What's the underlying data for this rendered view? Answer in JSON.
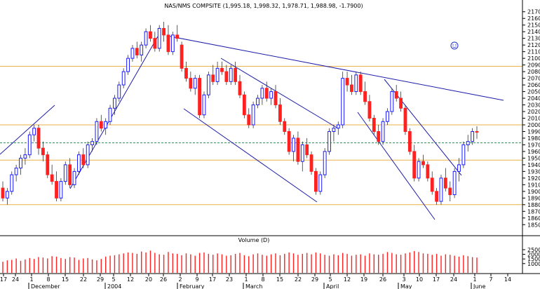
{
  "chart_data": [
    {
      "type": "candlestick",
      "title": "NAS/NMS COMPSITE (1,995.18, 1,998.32, 1,978.71, 1,988.98, -1.7900)",
      "ylim": [
        1845,
        2175
      ],
      "y_ticks": [
        1850,
        1860,
        1870,
        1880,
        1890,
        1900,
        1910,
        1920,
        1930,
        1940,
        1950,
        1960,
        1970,
        1980,
        1990,
        2000,
        2010,
        2020,
        2030,
        2040,
        2050,
        2060,
        2070,
        2080,
        2090,
        2100,
        2110,
        2120,
        2130,
        2140,
        2150,
        2160,
        2170
      ],
      "horizontal_levels": [
        {
          "value": 2088,
          "style": "solid",
          "color": "#e8b04a"
        },
        {
          "value": 2000,
          "style": "solid",
          "color": "#e8b04a"
        },
        {
          "value": 1973,
          "style": "dashed",
          "color": "#2e8b57"
        },
        {
          "value": 1947,
          "style": "solid",
          "color": "#e8b04a"
        },
        {
          "value": 1880,
          "style": "solid",
          "color": "#e8b04a"
        }
      ],
      "up_color": "#1a1aff",
      "down_color": "#ff2020",
      "trendline_color": "#1c1caa",
      "candles": [
        [
          1905,
          1915,
          1885,
          1890
        ],
        [
          1890,
          1905,
          1880,
          1900
        ],
        [
          1900,
          1930,
          1895,
          1925
        ],
        [
          1925,
          1940,
          1915,
          1935
        ],
        [
          1935,
          1955,
          1925,
          1950
        ],
        [
          1950,
          1965,
          1940,
          1955
        ],
        [
          1955,
          1990,
          1950,
          1985
        ],
        [
          1985,
          2000,
          1975,
          1995
        ],
        [
          1995,
          2000,
          1955,
          1965
        ],
        [
          1965,
          1975,
          1945,
          1955
        ],
        [
          1955,
          1960,
          1920,
          1925
        ],
        [
          1925,
          1940,
          1910,
          1915
        ],
        [
          1915,
          1930,
          1885,
          1890
        ],
        [
          1890,
          1920,
          1885,
          1915
        ],
        [
          1915,
          1945,
          1910,
          1940
        ],
        [
          1940,
          1950,
          1905,
          1910
        ],
        [
          1910,
          1935,
          1905,
          1930
        ],
        [
          1930,
          1960,
          1925,
          1955
        ],
        [
          1955,
          1965,
          1935,
          1940
        ],
        [
          1940,
          1975,
          1935,
          1970
        ],
        [
          1970,
          1980,
          1960,
          1975
        ],
        [
          1975,
          2010,
          1970,
          2005
        ],
        [
          2005,
          2015,
          1990,
          1995
        ],
        [
          1995,
          2010,
          1985,
          2005
        ],
        [
          2005,
          2030,
          2000,
          2025
        ],
        [
          2025,
          2045,
          2015,
          2040
        ],
        [
          2040,
          2065,
          2035,
          2060
        ],
        [
          2060,
          2085,
          2055,
          2080
        ],
        [
          2080,
          2105,
          2075,
          2100
        ],
        [
          2100,
          2120,
          2095,
          2115
        ],
        [
          2115,
          2125,
          2100,
          2105
        ],
        [
          2105,
          2125,
          2095,
          2120
        ],
        [
          2120,
          2145,
          2115,
          2140
        ],
        [
          2140,
          2150,
          2125,
          2130
        ],
        [
          2130,
          2140,
          2110,
          2115
        ],
        [
          2115,
          2150,
          2110,
          2145
        ],
        [
          2145,
          2155,
          2125,
          2135
        ],
        [
          2135,
          2150,
          2105,
          2110
        ],
        [
          2110,
          2140,
          2105,
          2135
        ],
        [
          2135,
          2150,
          2125,
          2130
        ],
        [
          2120,
          2125,
          2080,
          2085
        ],
        [
          2085,
          2095,
          2065,
          2070
        ],
        [
          2070,
          2080,
          2050,
          2055
        ],
        [
          2055,
          2075,
          2045,
          2070
        ],
        [
          2070,
          2075,
          2010,
          2015
        ],
        [
          2015,
          2050,
          2010,
          2045
        ],
        [
          2045,
          2080,
          2040,
          2075
        ],
        [
          2075,
          2090,
          2060,
          2065
        ],
        [
          2065,
          2095,
          2060,
          2085
        ],
        [
          2085,
          2095,
          2075,
          2080
        ],
        [
          2080,
          2090,
          2060,
          2065
        ],
        [
          2065,
          2090,
          2060,
          2085
        ],
        [
          2085,
          2095,
          2060,
          2065
        ],
        [
          2065,
          2075,
          2040,
          2045
        ],
        [
          2045,
          2050,
          2010,
          2015
        ],
        [
          2015,
          2025,
          1995,
          2000
        ],
        [
          2000,
          2035,
          1995,
          2030
        ],
        [
          2030,
          2045,
          2025,
          2040
        ],
        [
          2040,
          2060,
          2030,
          2055
        ],
        [
          2055,
          2065,
          2035,
          2040
        ],
        [
          2040,
          2055,
          2030,
          2050
        ],
        [
          2050,
          2060,
          2025,
          2030
        ],
        [
          2030,
          2040,
          2000,
          2005
        ],
        [
          2005,
          2010,
          1985,
          1990
        ],
        [
          1990,
          1995,
          1955,
          1960
        ],
        [
          1960,
          1985,
          1945,
          1980
        ],
        [
          1980,
          1990,
          1940,
          1945
        ],
        [
          1945,
          1975,
          1930,
          1970
        ],
        [
          1970,
          1980,
          1950,
          1955
        ],
        [
          1955,
          1960,
          1925,
          1930
        ],
        [
          1930,
          1935,
          1895,
          1900
        ],
        [
          1900,
          1930,
          1895,
          1925
        ],
        [
          1925,
          1965,
          1920,
          1960
        ],
        [
          1960,
          1995,
          1955,
          1990
        ],
        [
          1990,
          2000,
          1975,
          1995
        ],
        [
          1995,
          2005,
          1985,
          2000
        ],
        [
          2000,
          2080,
          1995,
          2070
        ],
        [
          2070,
          2080,
          2050,
          2060
        ],
        [
          2060,
          2075,
          2045,
          2050
        ],
        [
          2050,
          2080,
          2045,
          2075
        ],
        [
          2075,
          2080,
          2045,
          2050
        ],
        [
          2050,
          2065,
          2030,
          2035
        ],
        [
          2035,
          2045,
          2005,
          2010
        ],
        [
          2010,
          2015,
          1985,
          1990
        ],
        [
          1990,
          2000,
          1970,
          1975
        ],
        [
          1975,
          2010,
          1970,
          2005
        ],
        [
          2005,
          2025,
          2000,
          2020
        ],
        [
          2020,
          2055,
          2015,
          2050
        ],
        [
          2050,
          2060,
          2035,
          2040
        ],
        [
          2040,
          2050,
          2020,
          2025
        ],
        [
          2025,
          2030,
          1985,
          1990
        ],
        [
          1990,
          1995,
          1955,
          1960
        ],
        [
          1960,
          1970,
          1915,
          1920
        ],
        [
          1920,
          1950,
          1915,
          1945
        ],
        [
          1945,
          1955,
          1935,
          1940
        ],
        [
          1940,
          1945,
          1915,
          1920
        ],
        [
          1920,
          1930,
          1895,
          1900
        ],
        [
          1900,
          1905,
          1880,
          1885
        ],
        [
          1885,
          1925,
          1880,
          1920
        ],
        [
          1920,
          1935,
          1900,
          1905
        ],
        [
          1905,
          1915,
          1885,
          1895
        ],
        [
          1895,
          1935,
          1890,
          1930
        ],
        [
          1930,
          1950,
          1915,
          1940
        ],
        [
          1940,
          1975,
          1935,
          1970
        ],
        [
          1970,
          1985,
          1960,
          1975
        ],
        [
          1975,
          1995,
          1970,
          1990
        ],
        [
          1990,
          1998,
          1979,
          1989
        ]
      ]
    },
    {
      "type": "bar",
      "title": "Volume (D)",
      "ylim": [
        0,
        31000
      ],
      "y_ticks": [
        10000,
        15000,
        20000,
        25000
      ],
      "bar_color": "#ff2020",
      "values": [
        12000,
        13500,
        14000,
        15500,
        13000,
        14500,
        16000,
        15000,
        17000,
        16500,
        15500,
        18000,
        17500,
        16000,
        15000,
        17000,
        16500,
        14000,
        15500,
        16000,
        14500,
        13500,
        15000,
        17500,
        18500,
        19000,
        20000,
        21000,
        22000,
        21500,
        20500,
        23000,
        22000,
        24000,
        21500,
        20000,
        19500,
        22500,
        21000,
        20500,
        19000,
        21000,
        20000,
        18500,
        21500,
        22000,
        20500,
        19500,
        21000,
        20000,
        18500,
        19000,
        20500,
        21500,
        19000,
        18000,
        20000,
        21000,
        19500,
        18500,
        20000,
        21000,
        19000,
        20500,
        22000,
        21000,
        19500,
        20500,
        21500,
        20000,
        22000,
        21000,
        19500,
        18500,
        20000,
        19000,
        21500,
        20500,
        18500,
        19500,
        20000,
        18500,
        21000,
        20000,
        19500,
        20500,
        22500,
        21500,
        20000,
        19500,
        21000,
        22000,
        23500,
        22500,
        21000,
        20500,
        19500,
        20500,
        18500,
        20000,
        19500,
        18500,
        17500,
        19000,
        18000,
        17000,
        16500
      ]
    },
    {
      "type": "x_axis",
      "day_labels": [
        "17",
        "24",
        "1",
        "8",
        "15",
        "22",
        "29",
        "5",
        "12",
        "20",
        "26",
        "2",
        "9",
        "17",
        "23",
        "1",
        "8",
        "15",
        "22",
        "29",
        "5",
        "12",
        "19",
        "26",
        "3",
        "10",
        "17",
        "24",
        "1",
        "7",
        "14"
      ],
      "month_labels": [
        "December",
        "2004",
        "February",
        "March",
        "April",
        "May",
        "June"
      ]
    }
  ]
}
